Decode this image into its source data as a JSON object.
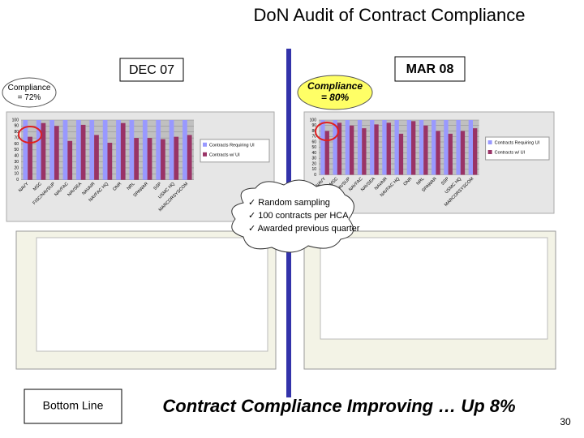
{
  "title": "DoN Audit of Contract Compliance",
  "left_panel": {
    "label": "DEC 07",
    "callout": "Compliance = 72%",
    "chart": {
      "type": "bar",
      "categories": [
        "NAVY",
        "MSC",
        "FISC/NAVSUP",
        "NAVFAC",
        "NAVSEA",
        "NAVAIR",
        "NAVFAC HQ",
        "ONR",
        "NRL",
        "SPAWAR",
        "SSP",
        "USMC HQ",
        "MARCORSYSCOM"
      ],
      "series": [
        {
          "name": "Contracts Requiring UI",
          "color": "#9999ff",
          "values": [
            100,
            100,
            100,
            100,
            100,
            100,
            100,
            100,
            100,
            100,
            100,
            100,
            100
          ]
        },
        {
          "name": "Contracts w/ UI",
          "color": "#993366",
          "values": [
            72,
            95,
            90,
            65,
            92,
            75,
            62,
            95,
            70,
            70,
            68,
            72,
            75
          ]
        }
      ],
      "ylim": [
        0,
        100
      ],
      "yticks": [
        0,
        10,
        20,
        30,
        40,
        50,
        60,
        70,
        80,
        90,
        100
      ]
    }
  },
  "right_panel": {
    "label": "MAR 08",
    "callout": "Compliance = 80%",
    "chart": {
      "type": "bar",
      "categories": [
        "NAVY",
        "MSC",
        "FISC/NAVSUP",
        "NAVFAC",
        "NAVSEA",
        "NAVAIR",
        "NAVFAC HQ",
        "ONR",
        "NRL",
        "SPAWAR",
        "SSP",
        "USMC HQ",
        "MARCORSYSCOM"
      ],
      "series": [
        {
          "name": "Contracts Requiring UI",
          "color": "#9999ff",
          "values": [
            100,
            100,
            100,
            100,
            100,
            100,
            100,
            100,
            100,
            100,
            100,
            100,
            100
          ]
        },
        {
          "name": "Contracts w/ UI",
          "color": "#993366",
          "values": [
            80,
            95,
            90,
            85,
            92,
            95,
            75,
            98,
            90,
            80,
            75,
            80,
            85
          ]
        }
      ],
      "ylim": [
        0,
        100
      ],
      "yticks": [
        0,
        10,
        20,
        30,
        40,
        50,
        60,
        70,
        80,
        90,
        100
      ]
    }
  },
  "cloud": {
    "items": [
      "✓ Random sampling",
      "✓ 100 contracts per HCA",
      "✓ Awarded previous quarter"
    ]
  },
  "footer": {
    "label": "Bottom Line",
    "message": "Contract Compliance Improving … Up 8%",
    "page_number": "30"
  }
}
